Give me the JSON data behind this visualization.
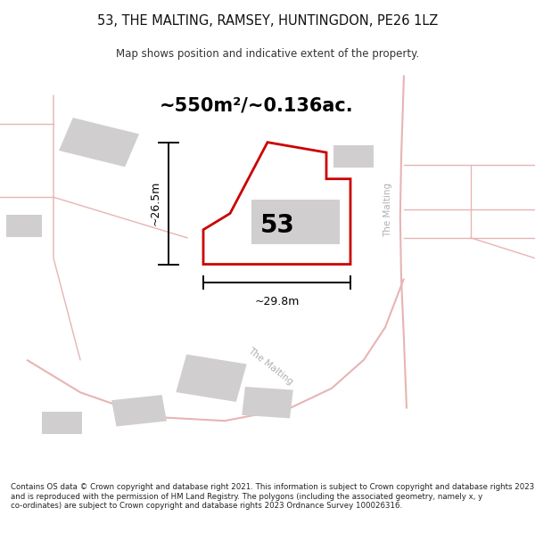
{
  "title": "53, THE MALTING, RAMSEY, HUNTINGDON, PE26 1LZ",
  "subtitle": "Map shows position and indicative extent of the property.",
  "area_label": "~550m²/~0.136ac.",
  "number_label": "53",
  "dim_width_label": "~29.8m",
  "dim_height_label": "~26.5m",
  "footer": "Contains OS data © Crown copyright and database right 2021. This information is subject to Crown copyright and database rights 2023 and is reproduced with the permission of HM Land Registry. The polygons (including the associated geometry, namely x, y co-ordinates) are subject to Crown copyright and database rights 2023 Ordnance Survey 100026316.",
  "map_bg": "#eeecec",
  "road_color": "#e8b4b4",
  "building_color": "#d0cece",
  "street_label_1": "The Malting",
  "street_label_2": "The Malting"
}
